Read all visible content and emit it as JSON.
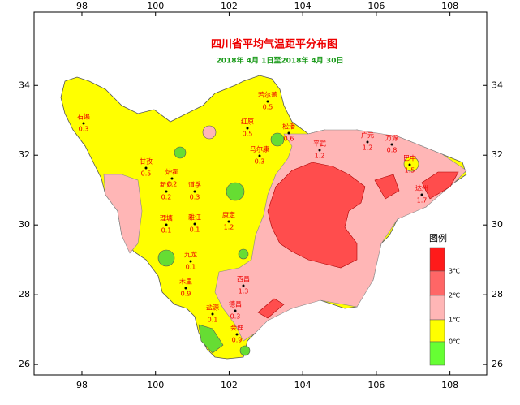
{
  "map": {
    "title": "四川省平均气温距平分布图",
    "subtitle": "2018年 4月 1日至2018年 4月 30日",
    "xticks": [
      98,
      100,
      102,
      104,
      106,
      108
    ],
    "yticks": [
      34,
      32,
      30,
      28,
      26
    ],
    "xlim": [
      96.7,
      109
    ],
    "ylim": [
      25.7,
      36.1
    ],
    "legend": {
      "title": "图例",
      "labels": [
        "3℃",
        "2℃",
        "1℃",
        "0℃"
      ],
      "colors": [
        "#ff1a1a",
        "#ff6666",
        "#ffb6b6",
        "#ffff00",
        "#66ff33"
      ]
    },
    "stations": [
      {
        "name": "石渠",
        "value": "0.3"
      },
      {
        "name": "若尔盖",
        "value": "0.5"
      },
      {
        "name": "红原",
        "value": "0.5"
      },
      {
        "name": "松潘",
        "value": "0.6"
      },
      {
        "name": "马尔康",
        "value": "0.3"
      },
      {
        "name": "甘孜",
        "value": "0.5"
      },
      {
        "name": "炉霍",
        "value": "0.2"
      },
      {
        "name": "新龙",
        "value": "0.2"
      },
      {
        "name": "道孚",
        "value": "0.3"
      },
      {
        "name": "理塘",
        "value": "0.1"
      },
      {
        "name": "雅江",
        "value": "0.1"
      },
      {
        "name": "康定",
        "value": "1.2"
      },
      {
        "name": "九龙",
        "value": "0.1"
      },
      {
        "name": "木里",
        "value": "0.9"
      },
      {
        "name": "西昌",
        "value": "1.3"
      },
      {
        "name": "盐源",
        "value": "0.1"
      },
      {
        "name": "德昌",
        "value": "0.3"
      },
      {
        "name": "会理",
        "value": "0.9"
      },
      {
        "name": "平武",
        "value": "1.2"
      },
      {
        "name": "广元",
        "value": "1.2"
      },
      {
        "name": "万源",
        "value": "0.8"
      },
      {
        "name": "巴中",
        "value": "1.5"
      },
      {
        "name": "达州",
        "value": "1.7"
      }
    ]
  }
}
